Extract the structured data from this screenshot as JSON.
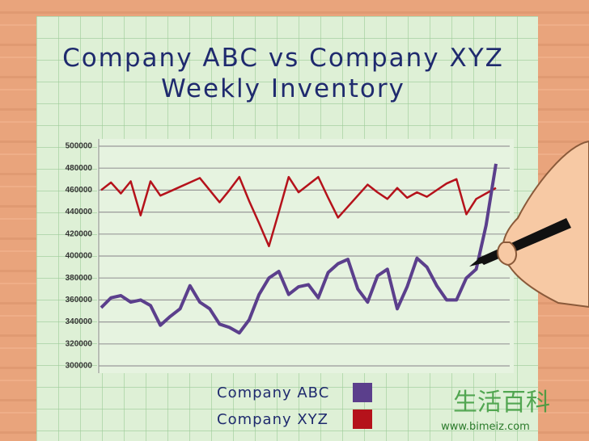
{
  "chart_data": {
    "type": "line",
    "title": "Company ABC vs Company XYZ",
    "subtitle": "Weekly Inventory",
    "categories": [
      null,
      null,
      null,
      null,
      null,
      null,
      null,
      null,
      null,
      null,
      null,
      null,
      null,
      null,
      null,
      null,
      null,
      null,
      null,
      null,
      null,
      null,
      null,
      null,
      null,
      null,
      null,
      null,
      null,
      null,
      null,
      null,
      null,
      null,
      null,
      null,
      null,
      null,
      null,
      null,
      null
    ],
    "series": [
      {
        "name": "Company ABC",
        "color": "#5b3f8c",
        "values": [
          353000,
          362000,
          364000,
          358000,
          360000,
          355000,
          337000,
          345000,
          352000,
          373000,
          358000,
          352000,
          338000,
          335000,
          330000,
          342000,
          365000,
          380000,
          386000,
          365000,
          372000,
          374000,
          362000,
          385000,
          393000,
          397000,
          370000,
          358000,
          382000,
          388000,
          352000,
          372000,
          398000,
          390000,
          373000,
          360000,
          360000,
          380000,
          388000,
          428000,
          484000
        ]
      },
      {
        "name": "Company XYZ",
        "color": "#b5121b",
        "values": [
          460000,
          467000,
          457000,
          468000,
          437000,
          468000,
          455000,
          459000,
          463000,
          467000,
          471000,
          460000,
          449000,
          460000,
          472000,
          450000,
          430000,
          409000,
          440000,
          472000,
          458000,
          465000,
          472000,
          453000,
          435000,
          445000,
          455000,
          465000,
          458000,
          452000,
          462000,
          453000,
          458000,
          454000,
          460000,
          466000,
          470000,
          438000,
          452000,
          457000,
          462000
        ]
      }
    ],
    "ylim": [
      300000,
      500000
    ],
    "yticks": [
      300000,
      320000,
      340000,
      360000,
      380000,
      400000,
      420000,
      440000,
      460000,
      480000,
      500000
    ],
    "grid": true
  },
  "watermark": {
    "text": "www.bimeiz.com",
    "logo": "生活百科"
  }
}
